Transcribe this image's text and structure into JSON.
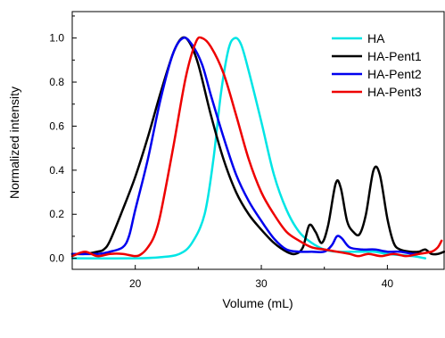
{
  "chart_data": {
    "type": "line",
    "xlabel": "Volume (mL)",
    "ylabel": "Normalized intensity",
    "xlim": [
      15,
      44.5
    ],
    "ylim": [
      -0.05,
      1.12
    ],
    "x_ticks": [
      20,
      30,
      40
    ],
    "y_ticks": [
      0.0,
      0.2,
      0.4,
      0.6,
      0.8,
      1.0
    ],
    "y_tick_labels": [
      "0.0",
      "0.2",
      "0.4",
      "0.6",
      "0.8",
      "1.0"
    ],
    "x_tick_labels": [
      "20",
      "30",
      "40"
    ],
    "legend_position": "top-right",
    "series": [
      {
        "name": "HA",
        "color": "#00e5e5",
        "points": [
          [
            15,
            0.0
          ],
          [
            20,
            0.0
          ],
          [
            22,
            0.005
          ],
          [
            23.5,
            0.02
          ],
          [
            24.5,
            0.07
          ],
          [
            25.5,
            0.2
          ],
          [
            26.2,
            0.45
          ],
          [
            26.8,
            0.75
          ],
          [
            27.4,
            0.95
          ],
          [
            27.9,
            1.0
          ],
          [
            28.4,
            0.97
          ],
          [
            29,
            0.85
          ],
          [
            30,
            0.62
          ],
          [
            31,
            0.38
          ],
          [
            32,
            0.22
          ],
          [
            33,
            0.12
          ],
          [
            34,
            0.07
          ],
          [
            35,
            0.04
          ],
          [
            36,
            0.03
          ],
          [
            37,
            0.03
          ],
          [
            38,
            0.03
          ],
          [
            39,
            0.03
          ],
          [
            40,
            0.02
          ],
          [
            42,
            0.01
          ],
          [
            43,
            0.0
          ]
        ]
      },
      {
        "name": "HA-Pent1",
        "color": "#000000",
        "points": [
          [
            15,
            0.02
          ],
          [
            16,
            0.02
          ],
          [
            17,
            0.03
          ],
          [
            17.5,
            0.04
          ],
          [
            18,
            0.08
          ],
          [
            19,
            0.22
          ],
          [
            20,
            0.37
          ],
          [
            21,
            0.55
          ],
          [
            22,
            0.75
          ],
          [
            23,
            0.93
          ],
          [
            23.7,
            1.0
          ],
          [
            24.3,
            0.98
          ],
          [
            25,
            0.88
          ],
          [
            26,
            0.65
          ],
          [
            27,
            0.45
          ],
          [
            28,
            0.3
          ],
          [
            29,
            0.2
          ],
          [
            30,
            0.13
          ],
          [
            31,
            0.07
          ],
          [
            32,
            0.03
          ],
          [
            32.7,
            0.02
          ],
          [
            33.3,
            0.05
          ],
          [
            33.8,
            0.15
          ],
          [
            34.3,
            0.12
          ],
          [
            34.8,
            0.07
          ],
          [
            35.3,
            0.15
          ],
          [
            35.9,
            0.34
          ],
          [
            36.3,
            0.32
          ],
          [
            36.8,
            0.17
          ],
          [
            37.3,
            0.12
          ],
          [
            37.8,
            0.11
          ],
          [
            38.3,
            0.2
          ],
          [
            38.9,
            0.4
          ],
          [
            39.4,
            0.38
          ],
          [
            40,
            0.18
          ],
          [
            40.5,
            0.07
          ],
          [
            41,
            0.04
          ],
          [
            41.8,
            0.03
          ],
          [
            42.5,
            0.03
          ],
          [
            43,
            0.04
          ],
          [
            43.5,
            0.02
          ],
          [
            44,
            0.02
          ],
          [
            44.5,
            0.03
          ]
        ]
      },
      {
        "name": "HA-Pent2",
        "color": "#0000ee",
        "points": [
          [
            15,
            0.02
          ],
          [
            17,
            0.02
          ],
          [
            18,
            0.03
          ],
          [
            19,
            0.05
          ],
          [
            19.5,
            0.1
          ],
          [
            20,
            0.22
          ],
          [
            21,
            0.45
          ],
          [
            22,
            0.72
          ],
          [
            23,
            0.93
          ],
          [
            23.8,
            1.0
          ],
          [
            24.5,
            0.97
          ],
          [
            25.3,
            0.88
          ],
          [
            26,
            0.74
          ],
          [
            27,
            0.55
          ],
          [
            28,
            0.38
          ],
          [
            29,
            0.26
          ],
          [
            30,
            0.17
          ],
          [
            31,
            0.09
          ],
          [
            32,
            0.04
          ],
          [
            33,
            0.03
          ],
          [
            34,
            0.03
          ],
          [
            35,
            0.03
          ],
          [
            35.6,
            0.06
          ],
          [
            36,
            0.1
          ],
          [
            36.4,
            0.09
          ],
          [
            37,
            0.05
          ],
          [
            38,
            0.04
          ],
          [
            39,
            0.04
          ],
          [
            40,
            0.03
          ],
          [
            41,
            0.03
          ],
          [
            42,
            0.02
          ],
          [
            42.5,
            0.02
          ]
        ]
      },
      {
        "name": "HA-Pent3",
        "color": "#ee0000",
        "points": [
          [
            15,
            0.01
          ],
          [
            16,
            0.03
          ],
          [
            17,
            0.01
          ],
          [
            18,
            0.02
          ],
          [
            19,
            0.02
          ],
          [
            20,
            0.01
          ],
          [
            20.5,
            0.02
          ],
          [
            21,
            0.05
          ],
          [
            21.5,
            0.1
          ],
          [
            22,
            0.2
          ],
          [
            23,
            0.5
          ],
          [
            24,
            0.82
          ],
          [
            24.8,
            0.98
          ],
          [
            25.3,
            1.0
          ],
          [
            26,
            0.96
          ],
          [
            27,
            0.84
          ],
          [
            28,
            0.65
          ],
          [
            29,
            0.45
          ],
          [
            30,
            0.3
          ],
          [
            31,
            0.2
          ],
          [
            32,
            0.12
          ],
          [
            33,
            0.08
          ],
          [
            34,
            0.05
          ],
          [
            35,
            0.04
          ],
          [
            36,
            0.03
          ],
          [
            37,
            0.02
          ],
          [
            37.7,
            0.01
          ],
          [
            38.5,
            0.02
          ],
          [
            39.5,
            0.01
          ],
          [
            40.5,
            0.02
          ],
          [
            41.5,
            0.01
          ],
          [
            42.5,
            0.02
          ],
          [
            43.5,
            0.03
          ],
          [
            44,
            0.05
          ],
          [
            44.3,
            0.08
          ]
        ]
      }
    ]
  }
}
